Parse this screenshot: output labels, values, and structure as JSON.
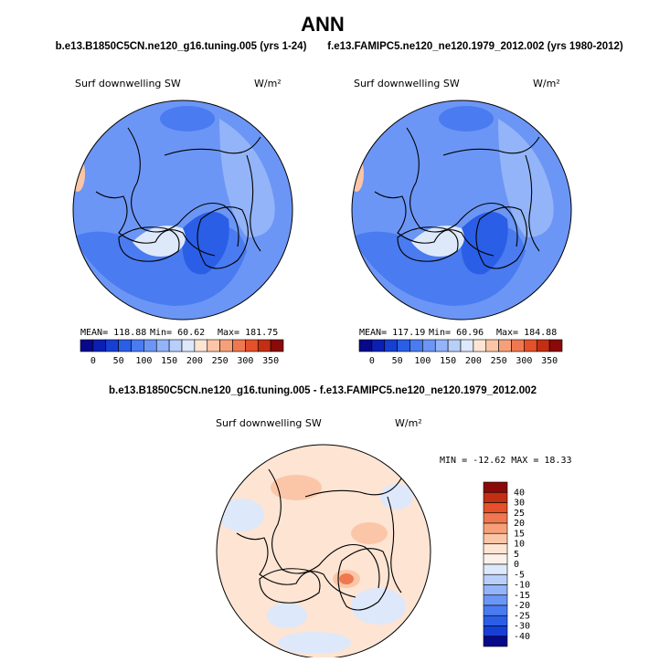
{
  "title": "ANN",
  "panels": [
    {
      "case": "b.e13.B1850C5CN.ne120_g16.tuning.005 (yrs 1-24)",
      "variable": "Surf downwelling SW",
      "units": "W/m²",
      "stats": [
        "MEAN= 118.88",
        "Min=  60.62",
        "Max= 181.75"
      ],
      "colorbar": {
        "labels": [
          0,
          50,
          100,
          150,
          200,
          250,
          300,
          350
        ],
        "colors": [
          "#08088a",
          "#0b1fb5",
          "#1640d4",
          "#2a5ee6",
          "#4a7bf0",
          "#6c96f5",
          "#93b4f8",
          "#b8cff9",
          "#dde8fb",
          "#fde4d3",
          "#fbc6a7",
          "#f6a07a",
          "#f07850",
          "#e4512b",
          "#c42e12",
          "#8a0a0a"
        ]
      }
    },
    {
      "case": "f.e13.FAMIPC5.ne120_ne120.1979_2012.002 (yrs 1980-2012)",
      "variable": "Surf downwelling SW",
      "units": "W/m²",
      "stats": [
        "MEAN= 117.19",
        "Min=  60.96",
        "Max= 184.88"
      ],
      "colorbar": {
        "labels": [
          0,
          50,
          100,
          150,
          200,
          250,
          300,
          350
        ],
        "colors": [
          "#08088a",
          "#0b1fb5",
          "#1640d4",
          "#2a5ee6",
          "#4a7bf0",
          "#6c96f5",
          "#93b4f8",
          "#b8cff9",
          "#dde8fb",
          "#fde4d3",
          "#fbc6a7",
          "#f6a07a",
          "#f07850",
          "#e4512b",
          "#c42e12",
          "#8a0a0a"
        ]
      }
    }
  ],
  "difference": {
    "title": "b.e13.B1850C5CN.ne120_g16.tuning.005 - f.e13.FAMIPC5.ne120_ne120.1979_2012.002",
    "variable": "Surf downwelling SW",
    "units": "W/m²",
    "stats": "MIN = -12.62 MAX =  18.33",
    "colorbar": {
      "labels": [
        40,
        30,
        25,
        20,
        15,
        10,
        5,
        0,
        -5,
        -10,
        -15,
        -20,
        -25,
        -30,
        -40
      ],
      "colors": [
        "#8a0a0a",
        "#c42e12",
        "#e4512b",
        "#f07850",
        "#f6a07a",
        "#fbc6a7",
        "#fde4d3",
        "#fdf0e8",
        "#dde8fb",
        "#b8cff9",
        "#93b4f8",
        "#6c96f5",
        "#4a7bf0",
        "#2a5ee6",
        "#1640d4",
        "#08088a"
      ]
    }
  }
}
